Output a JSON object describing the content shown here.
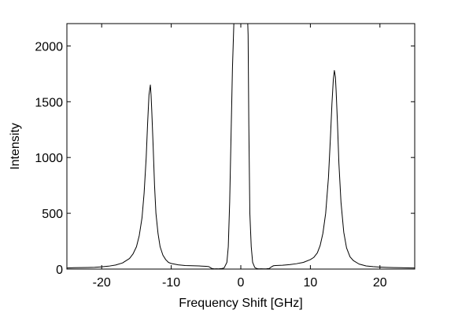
{
  "chart_data": {
    "type": "line",
    "title": "",
    "xlabel": "Frequency Shift [GHz]",
    "ylabel": "Intensity",
    "xlim": [
      -25,
      25
    ],
    "ylim": [
      0,
      2200
    ],
    "xticks": [
      -20,
      -10,
      0,
      10,
      20
    ],
    "yticks": [
      0,
      500,
      1000,
      1500,
      2000
    ],
    "xtick_labels": [
      "-20",
      "-10",
      "0",
      "10",
      "20"
    ],
    "ytick_labels": [
      "0",
      "500",
      "1000",
      "1500",
      "2000"
    ],
    "grid": false,
    "legend": "none",
    "colors": {
      "line": "#000000",
      "axes": "#000000",
      "background": "#ffffff"
    },
    "series": [
      {
        "x": [
          -25,
          -24,
          -23,
          -22,
          -21,
          -20,
          -19,
          -18,
          -17,
          -16,
          -15.5,
          -15,
          -14.6,
          -14.2,
          -13.9,
          -13.6,
          -13.4,
          -13.2,
          -13.0,
          -12.9,
          -12.8,
          -12.6,
          -12.4,
          -12.2,
          -11.9,
          -11.6,
          -11.2,
          -10.8,
          -10.4,
          -10,
          -9,
          -8,
          -7,
          -6,
          -5,
          -4.6,
          -4.3,
          -4.1,
          -3.8,
          -3.5,
          -3.2,
          -2.8,
          -2.4,
          -2.0,
          -1.8,
          -1.6,
          -1.4,
          -1.2,
          -1.05,
          -1.0,
          -0.5,
          0,
          0.5,
          1.0,
          1.05,
          1.15,
          1.3,
          1.5,
          1.7,
          2.0,
          2.3,
          2.6,
          2.9,
          3.3,
          3.7,
          4.1,
          4.4,
          4.7,
          5.0,
          6,
          7,
          8,
          9,
          10,
          10.5,
          11,
          11.4,
          11.8,
          12.2,
          12.6,
          12.9,
          13.1,
          13.3,
          13.45,
          13.6,
          13.7,
          13.9,
          14.1,
          14.4,
          14.8,
          15.2,
          15.7,
          16.2,
          17,
          18,
          19,
          20,
          21,
          22,
          23,
          24,
          25
        ],
        "y": [
          10,
          12,
          13,
          14,
          16,
          20,
          26,
          36,
          55,
          95,
          135,
          200,
          300,
          460,
          680,
          1000,
          1300,
          1560,
          1650,
          1560,
          1420,
          1100,
          750,
          500,
          320,
          200,
          125,
          85,
          60,
          50,
          38,
          32,
          30,
          28,
          25,
          22,
          10,
          4,
          2,
          3,
          2,
          4,
          10,
          60,
          200,
          600,
          1200,
          1800,
          2100,
          2200,
          2200,
          2200,
          2200,
          2200,
          2100,
          1300,
          500,
          200,
          60,
          15,
          4,
          2,
          3,
          2,
          3,
          5,
          20,
          30,
          32,
          34,
          40,
          48,
          60,
          85,
          105,
          145,
          210,
          320,
          500,
          820,
          1200,
          1480,
          1700,
          1780,
          1720,
          1600,
          1300,
          950,
          600,
          330,
          190,
          110,
          75,
          45,
          28,
          22,
          18,
          15,
          13,
          12,
          11,
          10
        ]
      }
    ]
  }
}
